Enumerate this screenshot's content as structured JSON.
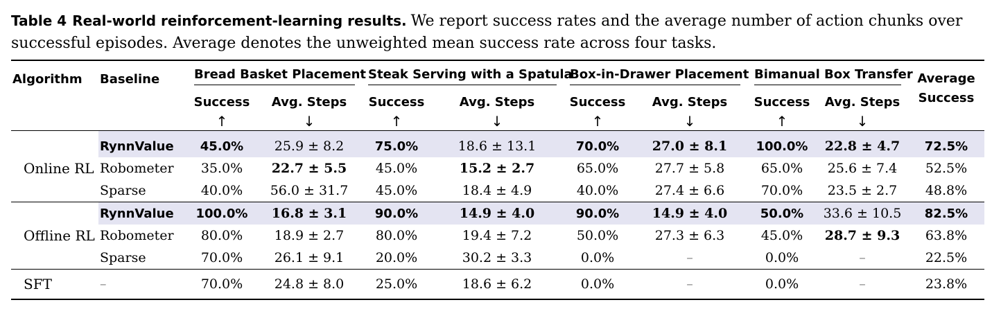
{
  "caption": {
    "label": "Table 4",
    "title": "Real-world reinforcement-learning results.",
    "text": "We report success rates and the average number of action chunks over successful episodes. Average denotes the unweighted mean success rate across four tasks."
  },
  "header": {
    "algorithm": "Algorithm",
    "baseline": "Baseline",
    "tasks": [
      "Bread Basket Placement",
      "Steak Serving with a Spatula",
      "Box-in-Drawer Placement",
      "Bimanual Box Transfer"
    ],
    "avg_line1": "Average",
    "avg_line2": "Success",
    "success": "Success",
    "avg_steps": "Avg. Steps",
    "up_arrow": "↑",
    "down_arrow": "↓"
  },
  "groups": [
    {
      "algorithm": "Online RL",
      "rows": [
        {
          "baseline": "RynnValue",
          "cells": [
            "45.0%",
            "25.9 ± 8.2",
            "75.0%",
            "18.6 ± 13.1",
            "70.0%",
            "27.0 ± 8.1",
            "100.0%",
            "22.8 ± 4.7",
            "72.5%"
          ]
        },
        {
          "baseline": "Robometer",
          "cells": [
            "35.0%",
            "22.7 ± 5.5",
            "45.0%",
            "15.2 ± 2.7",
            "65.0%",
            "27.7 ± 5.8",
            "65.0%",
            "25.6 ± 7.4",
            "52.5%"
          ]
        },
        {
          "baseline": "Sparse",
          "cells": [
            "40.0%",
            "56.0 ± 31.7",
            "45.0%",
            "18.4 ± 4.9",
            "40.0%",
            "27.4 ± 6.6",
            "70.0%",
            "23.5 ± 2.7",
            "48.8%"
          ]
        }
      ]
    },
    {
      "algorithm": "Offline RL",
      "rows": [
        {
          "baseline": "RynnValue",
          "cells": [
            "100.0%",
            "16.8 ± 3.1",
            "90.0%",
            "14.9 ± 4.0",
            "90.0%",
            "14.9 ± 4.0",
            "50.0%",
            "33.6 ± 10.5",
            "82.5%"
          ]
        },
        {
          "baseline": "Robometer",
          "cells": [
            "80.0%",
            "18.9 ± 2.7",
            "80.0%",
            "19.4 ± 7.2",
            "50.0%",
            "27.3 ± 6.3",
            "45.0%",
            "28.7 ± 9.3",
            "63.8%"
          ]
        },
        {
          "baseline": "Sparse",
          "cells": [
            "70.0%",
            "26.1 ± 9.1",
            "20.0%",
            "30.2 ± 3.3",
            "0.0%",
            "–",
            "0.0%",
            "–",
            "22.5%"
          ]
        }
      ]
    },
    {
      "algorithm": "SFT",
      "rows": [
        {
          "baseline": "–",
          "cells": [
            "70.0%",
            "24.8 ± 8.0",
            "25.0%",
            "18.6 ± 6.2",
            "0.0%",
            "–",
            "0.0%",
            "–",
            "23.8%"
          ]
        }
      ]
    }
  ],
  "highlight_color": "#e4e4f2"
}
